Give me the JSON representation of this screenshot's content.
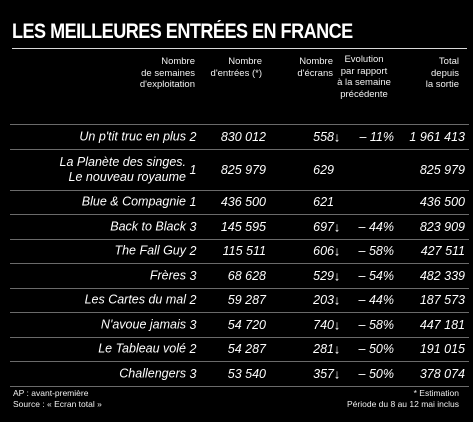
{
  "title": "LES MEILLEURES ENTRÉES EN FRANCE",
  "headers": {
    "weeks": "Nombre\nde semaines\nd'exploitation",
    "entries": "Nombre\nd'entrées (*)",
    "screens": "Nombre\nd'écrans",
    "evolution": "Evolution\npar rapport\nà la semaine\nprécédente",
    "total": "Total\ndepuis\nla sortie"
  },
  "rows": [
    {
      "title": "Un p'tit truc en plus",
      "weeks": "2",
      "entries": "830 012",
      "screens": "558",
      "arrow": "↓",
      "evolution": "– 11%",
      "total": "1 961 413"
    },
    {
      "title": "La Planète des singes.\nLe nouveau royaume",
      "weeks": "1",
      "entries": "825 979",
      "screens": "629",
      "arrow": "",
      "evolution": "",
      "total": "825 979"
    },
    {
      "title": "Blue & Compagnie",
      "weeks": "1",
      "entries": "436 500",
      "screens": "621",
      "arrow": "",
      "evolution": "",
      "total": "436 500"
    },
    {
      "title": "Back to Black",
      "weeks": "3",
      "entries": "145 595",
      "screens": "697",
      "arrow": "↓",
      "evolution": "– 44%",
      "total": "823 909"
    },
    {
      "title": "The Fall Guy",
      "weeks": "2",
      "entries": "115 511",
      "screens": "606",
      "arrow": "↓",
      "evolution": "– 58%",
      "total": "427 511"
    },
    {
      "title": "Frères",
      "weeks": "3",
      "entries": "68 628",
      "screens": "529",
      "arrow": "↓",
      "evolution": "– 54%",
      "total": "482 339"
    },
    {
      "title": "Les Cartes du mal",
      "weeks": "2",
      "entries": "59 287",
      "screens": "203",
      "arrow": "↓",
      "evolution": "– 44%",
      "total": "187 573"
    },
    {
      "title": "N'avoue jamais",
      "weeks": "3",
      "entries": "54 720",
      "screens": "740",
      "arrow": "↓",
      "evolution": "– 58%",
      "total": "447 181"
    },
    {
      "title": "Le Tableau volé",
      "weeks": "2",
      "entries": "54 287",
      "screens": "281",
      "arrow": "↓",
      "evolution": "– 50%",
      "total": "191 015"
    },
    {
      "title": "Challengers",
      "weeks": "3",
      "entries": "53 540",
      "screens": "357",
      "arrow": "↓",
      "evolution": "– 50%",
      "total": "378 074"
    }
  ],
  "footer": {
    "left": "AP : avant-première\nSource : « Ecran total »",
    "right": "* Estimation\nPériode du 8 au 12 mai inclus"
  },
  "colors": {
    "background": "#000000",
    "text": "#ffffff",
    "rule": "#6a6a6a"
  }
}
